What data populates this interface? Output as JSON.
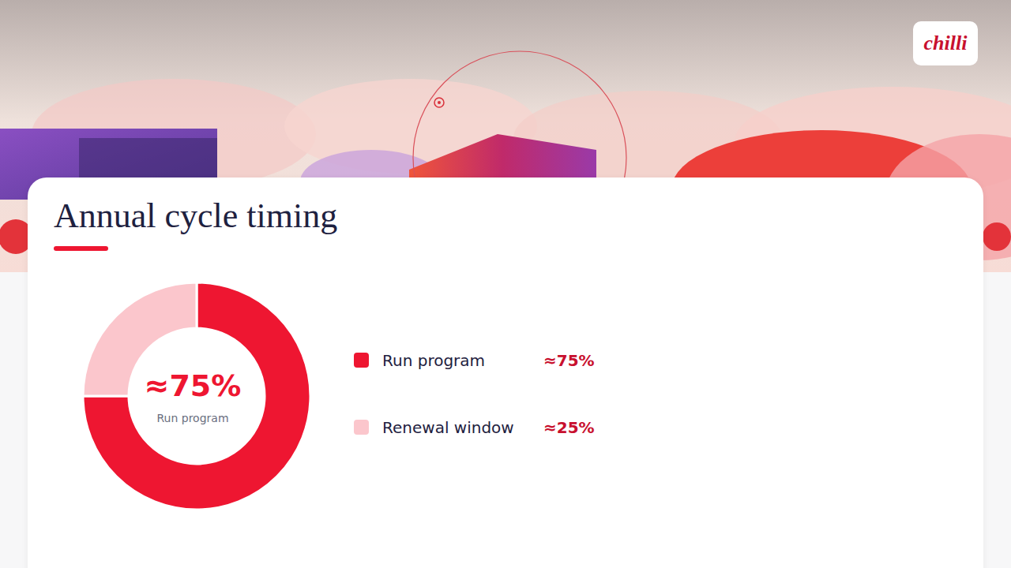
{
  "logo": "chilli",
  "chart_data": {
    "type": "pie",
    "title": "Annual cycle timing",
    "categories": [
      "Run program",
      "Renewal window"
    ],
    "values": [
      75,
      25
    ],
    "value_labels": [
      "≈75%",
      "≈25%"
    ],
    "colors": [
      "#ee1631",
      "#fbc6cc"
    ],
    "legend": "right"
  }
}
